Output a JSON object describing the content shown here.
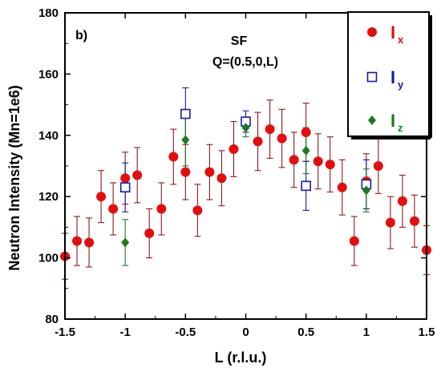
{
  "chart_data": {
    "type": "scatter",
    "panel_label": "b)",
    "annotation_line1": "SF",
    "annotation_line2": "Q=(0.5,0,L)",
    "xlabel": "L (r.l.u.)",
    "ylabel": "Neutron Intensity  (Mn=1e6)",
    "xlim": [
      -1.5,
      1.5
    ],
    "ylim": [
      80,
      180
    ],
    "xticks": [
      -1.5,
      -1,
      -0.5,
      0,
      0.5,
      1,
      1.5
    ],
    "xtick_labels": [
      "-1.5",
      "-1",
      "-0.5",
      "0",
      "0.5",
      "1",
      "1.5"
    ],
    "yticks": [
      80,
      100,
      120,
      140,
      160,
      180
    ],
    "ytick_labels": [
      "80",
      "100",
      "120",
      "140",
      "160",
      "180"
    ],
    "grid": false,
    "legend_position": "top-right",
    "series": [
      {
        "name": "Ix",
        "legend_main": "I",
        "legend_sub": "x",
        "marker": "filled-circle",
        "color": "#e01010",
        "errorbar_color": "#8b1a1a",
        "points": [
          {
            "x": -1.5,
            "y": 100.5,
            "err": 7.5
          },
          {
            "x": -1.4,
            "y": 105.5,
            "err": 8.0
          },
          {
            "x": -1.3,
            "y": 105.0,
            "err": 8.0
          },
          {
            "x": -1.2,
            "y": 120.0,
            "err": 8.5
          },
          {
            "x": -1.1,
            "y": 116.0,
            "err": 8.5
          },
          {
            "x": -1.0,
            "y": 126.0,
            "err": 8.5
          },
          {
            "x": -0.9,
            "y": 127.0,
            "err": 9.0
          },
          {
            "x": -0.8,
            "y": 108.0,
            "err": 8.0
          },
          {
            "x": -0.7,
            "y": 116.0,
            "err": 8.5
          },
          {
            "x": -0.6,
            "y": 133.0,
            "err": 9.0
          },
          {
            "x": -0.5,
            "y": 128.0,
            "err": 9.0
          },
          {
            "x": -0.4,
            "y": 115.5,
            "err": 8.5
          },
          {
            "x": -0.3,
            "y": 128.0,
            "err": 9.0
          },
          {
            "x": -0.2,
            "y": 126.0,
            "err": 9.0
          },
          {
            "x": -0.1,
            "y": 135.5,
            "err": 9.0
          },
          {
            "x": 0.1,
            "y": 138.0,
            "err": 9.5
          },
          {
            "x": 0.2,
            "y": 142.0,
            "err": 9.5
          },
          {
            "x": 0.3,
            "y": 139.0,
            "err": 9.5
          },
          {
            "x": 0.4,
            "y": 132.0,
            "err": 9.0
          },
          {
            "x": 0.5,
            "y": 141.0,
            "err": 9.5
          },
          {
            "x": 0.6,
            "y": 131.5,
            "err": 9.0
          },
          {
            "x": 0.7,
            "y": 130.5,
            "err": 9.0
          },
          {
            "x": 0.8,
            "y": 123.0,
            "err": 9.0
          },
          {
            "x": 0.9,
            "y": 105.5,
            "err": 8.0
          },
          {
            "x": 1.0,
            "y": 125.0,
            "err": 9.0
          },
          {
            "x": 1.1,
            "y": 130.0,
            "err": 9.0
          },
          {
            "x": 1.2,
            "y": 111.5,
            "err": 8.5
          },
          {
            "x": 1.3,
            "y": 118.5,
            "err": 8.5
          },
          {
            "x": 1.4,
            "y": 112.0,
            "err": 8.5
          },
          {
            "x": 1.5,
            "y": 102.5,
            "err": 8.0
          }
        ]
      },
      {
        "name": "Iy",
        "legend_main": "I",
        "legend_sub": "y",
        "marker": "open-square",
        "color": "#1a1aa0",
        "errorbar_color": "#1a1aa0",
        "points": [
          {
            "x": -1.0,
            "y": 123.0,
            "err": 8.0
          },
          {
            "x": -0.5,
            "y": 147.0,
            "err": 8.5
          },
          {
            "x": 0.0,
            "y": 144.5,
            "err": 3.5
          },
          {
            "x": 0.5,
            "y": 123.5,
            "err": 8.0
          },
          {
            "x": 1.0,
            "y": 124.0,
            "err": 8.0
          }
        ]
      },
      {
        "name": "Iz",
        "legend_main": "I",
        "legend_sub": "z",
        "marker": "filled-diamond",
        "color": "#1e7a1e",
        "errorbar_color": "#1e7a1e",
        "points": [
          {
            "x": -1.0,
            "y": 105.0,
            "err": 7.5
          },
          {
            "x": -0.5,
            "y": 138.5,
            "err": 8.5
          },
          {
            "x": 0.0,
            "y": 142.5,
            "err": 3.0
          },
          {
            "x": 0.5,
            "y": 135.0,
            "err": 7.5
          },
          {
            "x": 1.0,
            "y": 122.0,
            "err": 7.0
          }
        ]
      }
    ]
  }
}
